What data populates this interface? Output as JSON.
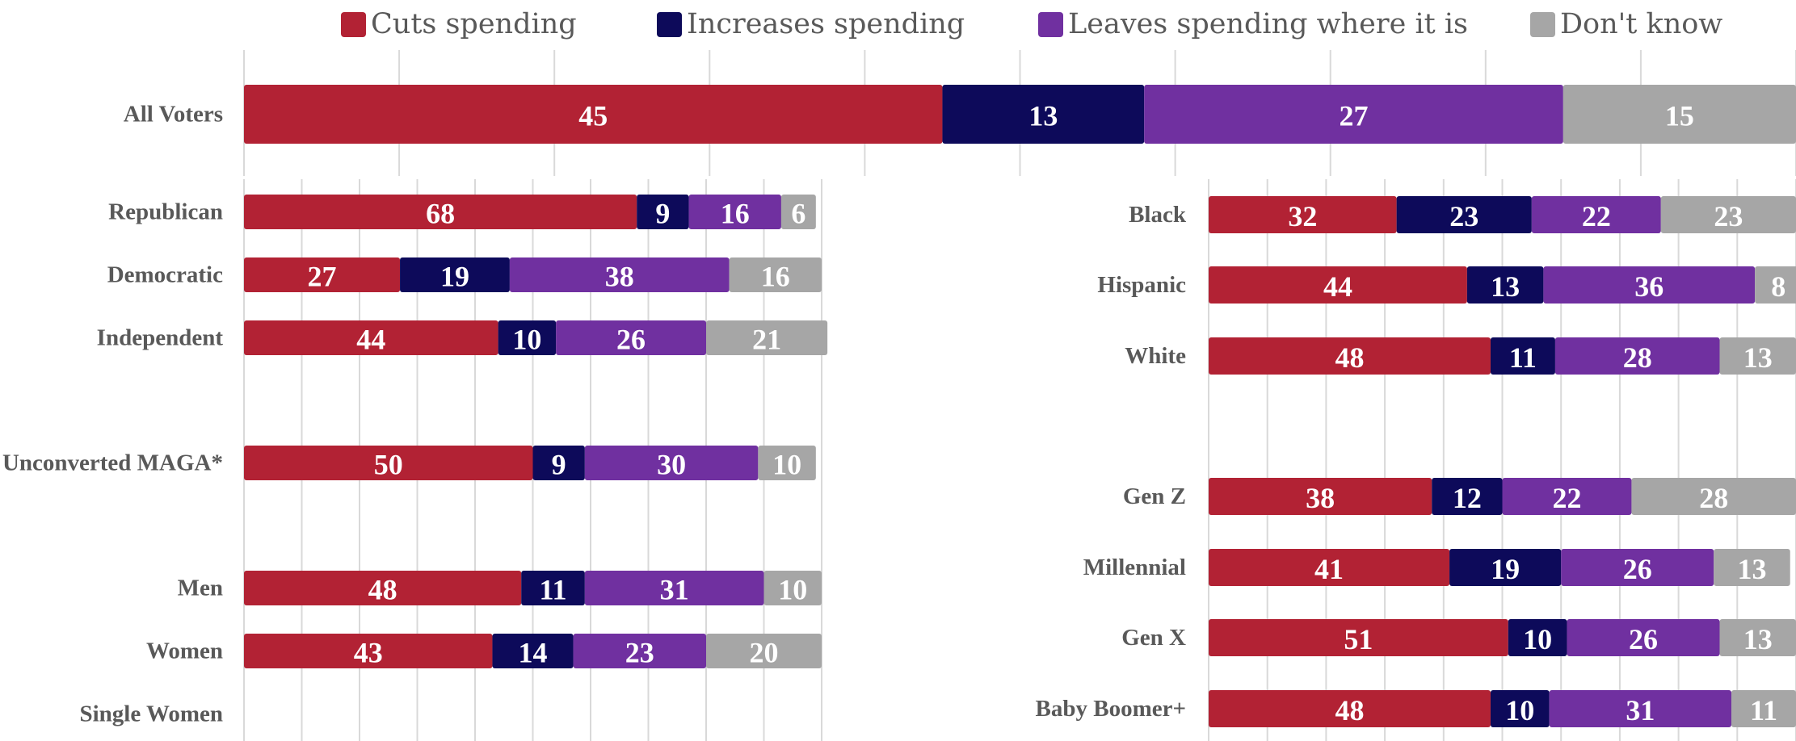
{
  "legend": [
    {
      "label": "Cuts spending",
      "color": "#B22234"
    },
    {
      "label": "Increases spending",
      "color": "#0D0A5A"
    },
    {
      "label": "Leaves spending where it is",
      "color": "#7030A0"
    },
    {
      "label": "Don't know",
      "color": "#A6A6A6"
    }
  ],
  "chart_data": {
    "type": "bar",
    "orientation": "horizontal",
    "stacked": true,
    "series_names": [
      "Cuts spending",
      "Increases spending",
      "Leaves spending where it is",
      "Don't know"
    ],
    "colors": [
      "#B22234",
      "#0D0A5A",
      "#7030A0",
      "#A6A6A6"
    ],
    "xlim": [
      0,
      100
    ],
    "grid": true,
    "legend_position": "top",
    "groups": [
      {
        "rows": [
          {
            "category": "All Voters",
            "values": [
              45,
              13,
              27,
              15
            ]
          }
        ]
      },
      {
        "rows": [
          {
            "category": "Republican",
            "values": [
              68,
              9,
              16,
              6
            ]
          },
          {
            "category": "Democratic",
            "values": [
              27,
              19,
              38,
              16
            ]
          },
          {
            "category": "Independent",
            "values": [
              44,
              10,
              26,
              21
            ]
          },
          {
            "category": "Unconverted MAGA*",
            "values": [
              50,
              9,
              30,
              10
            ]
          },
          {
            "category": "Men",
            "values": [
              48,
              11,
              31,
              10
            ]
          },
          {
            "category": "Women",
            "values": [
              43,
              14,
              23,
              20
            ]
          },
          {
            "category": "Single Women",
            "values": null
          }
        ]
      },
      {
        "rows": [
          {
            "category": "Black",
            "values": [
              32,
              23,
              22,
              23
            ]
          },
          {
            "category": "Hispanic",
            "values": [
              44,
              13,
              36,
              8
            ]
          },
          {
            "category": "White",
            "values": [
              48,
              11,
              28,
              13
            ]
          },
          {
            "category": "Gen Z",
            "values": [
              38,
              12,
              22,
              28
            ]
          },
          {
            "category": "Millennial",
            "values": [
              41,
              19,
              26,
              13
            ]
          },
          {
            "category": "Gen X",
            "values": [
              51,
              10,
              26,
              13
            ]
          },
          {
            "category": "Baby Boomer+",
            "values": [
              48,
              10,
              31,
              11
            ]
          }
        ]
      }
    ]
  }
}
